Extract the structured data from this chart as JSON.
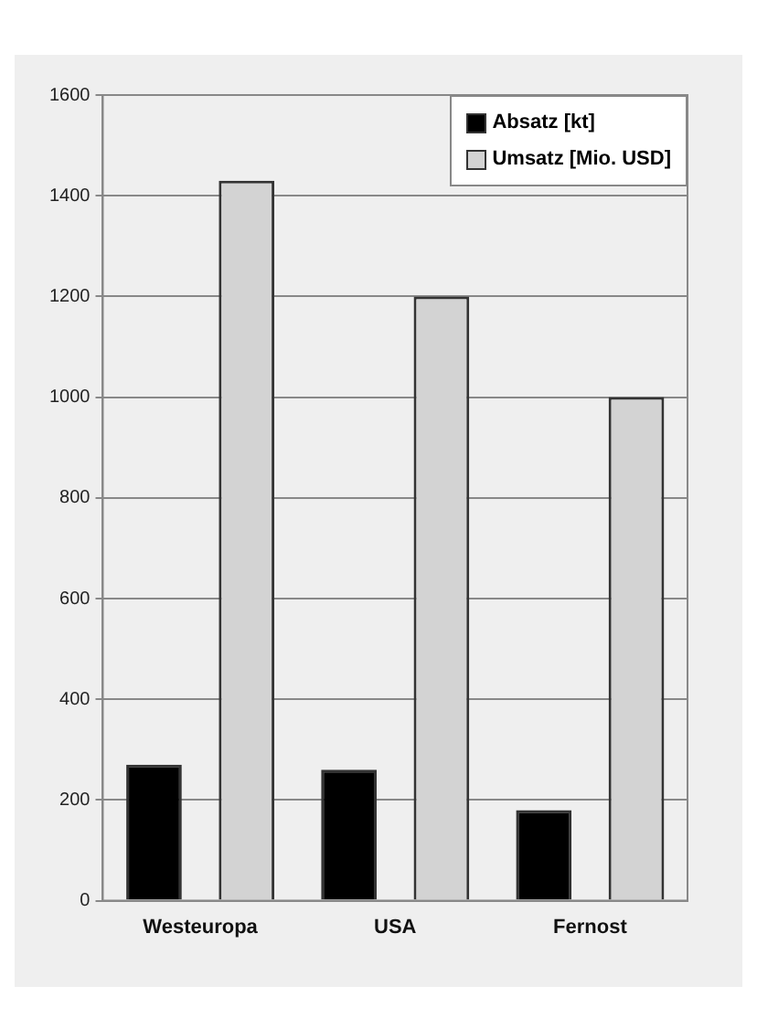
{
  "chart_data": {
    "type": "bar",
    "categories": [
      "Westeuropa",
      "USA",
      "Fernost"
    ],
    "series": [
      {
        "name": "Absatz [kt]",
        "color": "#000000",
        "values": [
          270,
          260,
          180
        ]
      },
      {
        "name": "Umsatz [Mio. USD]",
        "color": "#d3d3d3",
        "values": [
          1430,
          1200,
          1000
        ]
      }
    ],
    "ylim": [
      0,
      1600
    ],
    "yticks": [
      0,
      200,
      400,
      600,
      800,
      1000,
      1200,
      1400,
      1600
    ],
    "grid": "y",
    "legend": "top right"
  }
}
